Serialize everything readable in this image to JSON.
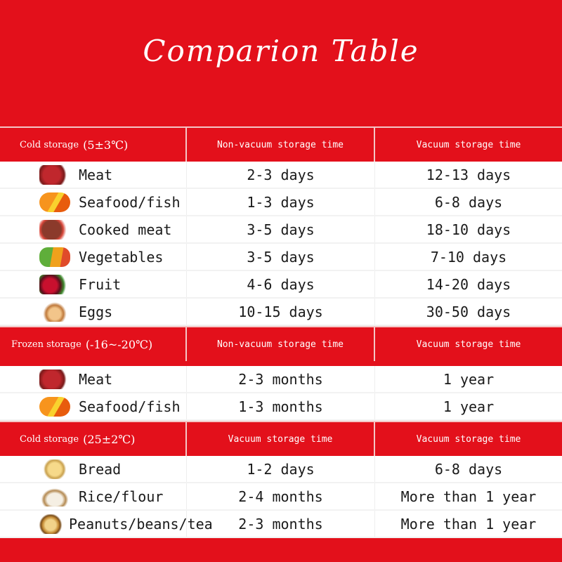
{
  "title": "Comparion Table",
  "colors": {
    "background": "#e3101b",
    "row_bg": "#ffffff"
  },
  "sections": [
    {
      "header": {
        "label": "Cold storage",
        "temp": "(5±3℃)",
        "col2": "Non-vacuum storage time",
        "col3": "Vacuum storage time"
      },
      "rows": [
        {
          "icon": "meat-icon",
          "name": "Meat",
          "nonvac": "2-3 days",
          "vac": "12-13 days"
        },
        {
          "icon": "seafood-icon",
          "name": "Seafood/fish",
          "nonvac": "1-3 days",
          "vac": "6-8 days"
        },
        {
          "icon": "cooked-meat-icon",
          "name": "Cooked meat",
          "nonvac": "3-5 days",
          "vac": "18-10 days"
        },
        {
          "icon": "vegetables-icon",
          "name": "Vegetables",
          "nonvac": "3-5 days",
          "vac": "7-10 days"
        },
        {
          "icon": "fruit-icon",
          "name": "Fruit",
          "nonvac": "4-6 days",
          "vac": "14-20 days"
        },
        {
          "icon": "eggs-icon",
          "name": "Eggs",
          "nonvac": "10-15 days",
          "vac": "30-50 days"
        }
      ]
    },
    {
      "header": {
        "label": "Frozen storage",
        "temp": "(-16~-20℃)",
        "col2": "Non-vacuum storage time",
        "col3": "Vacuum storage time"
      },
      "rows": [
        {
          "icon": "meat-icon",
          "name": "Meat",
          "nonvac": "2-3 months",
          "vac": "1 year"
        },
        {
          "icon": "seafood-icon",
          "name": "Seafood/fish",
          "nonvac": "1-3 months",
          "vac": "1 year"
        }
      ]
    },
    {
      "header": {
        "label": "Cold storage",
        "temp": "(25±2℃)",
        "col2": "Vacuum storage time",
        "col3": "Vacuum storage time"
      },
      "rows": [
        {
          "icon": "bread-icon",
          "name": "Bread",
          "nonvac": "1-2 days",
          "vac": "6-8 days"
        },
        {
          "icon": "rice-flour-icon",
          "name": "Rice/flour",
          "nonvac": "2-4 months",
          "vac": "More than 1 year"
        },
        {
          "icon": "peanuts-beans-tea-icon",
          "name": "Peanuts/beans/tea",
          "nonvac": "2-3 months",
          "vac": "More than 1 year"
        }
      ]
    }
  ]
}
